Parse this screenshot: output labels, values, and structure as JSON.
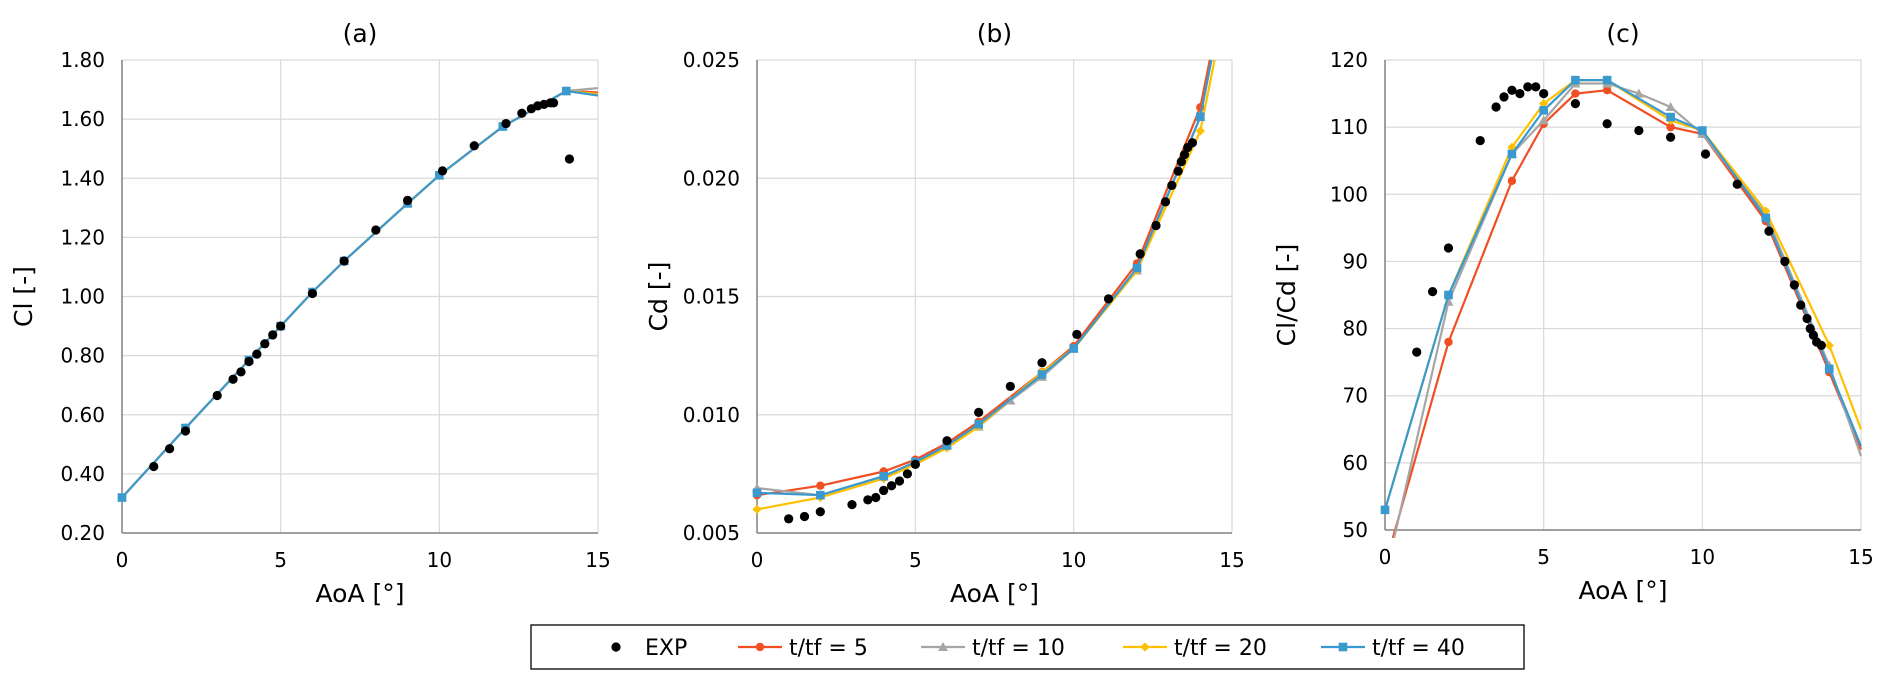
{
  "colors": {
    "exp": "#000000",
    "t5": "#F04E23",
    "t10": "#A6A6A6",
    "t20": "#FFC000",
    "t40": "#3A9AD0",
    "grid": "#D9D9D9",
    "axis": "#808080"
  },
  "legend": {
    "items": [
      {
        "key": "exp",
        "label": "EXP",
        "marker": "circle"
      },
      {
        "key": "t5",
        "label": "t/tf = 5",
        "marker": "circle"
      },
      {
        "key": "t10",
        "label": "t/tf = 10",
        "marker": "triangle"
      },
      {
        "key": "t20",
        "label": "t/tf = 20",
        "marker": "diamond"
      },
      {
        "key": "t40",
        "label": "t/tf = 40",
        "marker": "square"
      }
    ]
  },
  "chart_data": [
    {
      "type": "line",
      "title": "(a)",
      "xlabel": "AoA [°]",
      "ylabel": "Cl [-]",
      "xlim": [
        0,
        15
      ],
      "ylim": [
        0.2,
        1.8
      ],
      "xticks": [
        0,
        5,
        10,
        15
      ],
      "xtick_labels": [
        "0",
        "5",
        "10",
        "15"
      ],
      "yticks": [
        0.2,
        0.4,
        0.6,
        0.8,
        1.0,
        1.2,
        1.4,
        1.6,
        1.8
      ],
      "ytick_labels": [
        "0.20",
        "0.40",
        "0.60",
        "0.80",
        "1.00",
        "1.20",
        "1.40",
        "1.60",
        "1.80"
      ],
      "grid": true,
      "series": [
        {
          "key": "t5",
          "name": "t/tf = 5",
          "x": [
            0,
            2,
            4,
            5,
            6,
            7,
            9,
            10,
            12,
            14,
            15
          ],
          "y": [
            0.32,
            0.555,
            0.785,
            0.9,
            1.015,
            1.12,
            1.315,
            1.41,
            1.575,
            1.695,
            1.69
          ]
        },
        {
          "key": "t10",
          "name": "t/tf = 10",
          "x": [
            0,
            2,
            4,
            5,
            6,
            7,
            9,
            10,
            12,
            14,
            15
          ],
          "y": [
            0.32,
            0.555,
            0.785,
            0.9,
            1.015,
            1.12,
            1.315,
            1.41,
            1.575,
            1.695,
            1.705
          ]
        },
        {
          "key": "t20",
          "name": "t/tf = 20",
          "x": [
            0,
            2,
            4,
            5,
            6,
            7,
            9,
            10,
            12,
            14,
            15
          ],
          "y": [
            0.32,
            0.555,
            0.785,
            0.9,
            1.015,
            1.12,
            1.315,
            1.41,
            1.575,
            1.695,
            1.685
          ]
        },
        {
          "key": "t40",
          "name": "t/tf = 40",
          "x": [
            0,
            2,
            4,
            5,
            6,
            7,
            9,
            10,
            12,
            14,
            15
          ],
          "y": [
            0.32,
            0.555,
            0.785,
            0.9,
            1.015,
            1.12,
            1.315,
            1.41,
            1.575,
            1.695,
            1.68
          ]
        },
        {
          "key": "exp",
          "name": "EXP",
          "x": [
            1,
            1.5,
            2,
            3,
            3.5,
            3.75,
            4,
            4.25,
            4.5,
            4.75,
            5,
            6,
            7,
            8,
            9,
            10.1,
            11.1,
            12.1,
            12.6,
            12.9,
            13.1,
            13.3,
            13.5,
            13.6,
            14.1
          ],
          "y": [
            0.425,
            0.485,
            0.545,
            0.665,
            0.72,
            0.745,
            0.78,
            0.805,
            0.84,
            0.87,
            0.9,
            1.01,
            1.12,
            1.225,
            1.325,
            1.425,
            1.51,
            1.585,
            1.62,
            1.635,
            1.645,
            1.65,
            1.655,
            1.655,
            1.465
          ]
        }
      ]
    },
    {
      "type": "line",
      "title": "(b)",
      "xlabel": "AoA [°]",
      "ylabel": "Cd [-]",
      "xlim": [
        0,
        15
      ],
      "ylim": [
        0.005,
        0.025
      ],
      "xticks": [
        0,
        5,
        10,
        15
      ],
      "xtick_labels": [
        "0",
        "5",
        "10",
        "15"
      ],
      "yticks": [
        0.005,
        0.01,
        0.015,
        0.02,
        0.025
      ],
      "ytick_labels": [
        "0.005",
        "0.010",
        "0.015",
        "0.020",
        "0.025"
      ],
      "grid": true,
      "series": [
        {
          "key": "t5",
          "name": "t/tf = 5",
          "x": [
            0,
            2,
            4,
            5,
            6,
            7,
            9,
            10,
            12,
            14,
            14.3
          ],
          "y": [
            0.0066,
            0.007,
            0.0076,
            0.0081,
            0.0088,
            0.0097,
            0.0118,
            0.0129,
            0.0164,
            0.023,
            0.025
          ]
        },
        {
          "key": "t10",
          "name": "t/tf = 10",
          "x": [
            0,
            2,
            4,
            5,
            6,
            7,
            8,
            9,
            10,
            12,
            14,
            14.35
          ],
          "y": [
            0.0069,
            0.0066,
            0.0074,
            0.008,
            0.0087,
            0.0095,
            0.0106,
            0.0116,
            0.0128,
            0.0161,
            0.0226,
            0.025
          ]
        },
        {
          "key": "t20",
          "name": "t/tf = 20",
          "x": [
            0,
            2,
            4,
            5,
            6,
            7,
            9,
            10,
            12,
            14,
            14.45
          ],
          "y": [
            0.006,
            0.0065,
            0.0073,
            0.0079,
            0.0086,
            0.0095,
            0.0118,
            0.0128,
            0.0161,
            0.022,
            0.025
          ]
        },
        {
          "key": "t40",
          "name": "t/tf = 40",
          "x": [
            0,
            2,
            4,
            5,
            6,
            7,
            9,
            10,
            12,
            14,
            14.35
          ],
          "y": [
            0.0067,
            0.0066,
            0.0074,
            0.008,
            0.0087,
            0.0096,
            0.0117,
            0.0128,
            0.0162,
            0.0226,
            0.025
          ]
        },
        {
          "key": "exp",
          "name": "EXP",
          "x": [
            1,
            1.5,
            2,
            3,
            3.5,
            3.75,
            4,
            4.25,
            4.5,
            4.75,
            5,
            6,
            7,
            8,
            9,
            10.1,
            11.1,
            12.1,
            12.6,
            12.9,
            13.1,
            13.3,
            13.4,
            13.5,
            13.6,
            13.75
          ],
          "y": [
            0.0056,
            0.0057,
            0.0059,
            0.0062,
            0.0064,
            0.0065,
            0.0068,
            0.007,
            0.0072,
            0.0075,
            0.0079,
            0.0089,
            0.0101,
            0.0112,
            0.0122,
            0.0134,
            0.0149,
            0.0168,
            0.018,
            0.019,
            0.0197,
            0.0203,
            0.0207,
            0.021,
            0.0213,
            0.0215
          ]
        }
      ]
    },
    {
      "type": "line",
      "title": "(c)",
      "xlabel": "AoA [°]",
      "ylabel": "Cl/Cd [-]",
      "xlim": [
        0,
        15
      ],
      "ylim": [
        50,
        120
      ],
      "xticks": [
        0,
        5,
        10,
        15
      ],
      "xtick_labels": [
        "0",
        "5",
        "10",
        "15"
      ],
      "yticks": [
        50,
        60,
        70,
        80,
        90,
        100,
        110,
        120
      ],
      "ytick_labels": [
        "50",
        "60",
        "70",
        "80",
        "90",
        "100",
        "110",
        "120"
      ],
      "grid": true,
      "series": [
        {
          "key": "t5",
          "name": "t/tf = 5",
          "x": [
            0.2,
            2,
            4,
            5,
            6,
            7,
            9,
            10,
            12,
            14,
            15
          ],
          "y": [
            48,
            78,
            102,
            110.5,
            115,
            115.5,
            110,
            109,
            96,
            73.5,
            62
          ]
        },
        {
          "key": "t10",
          "name": "t/tf = 10",
          "x": [
            0.2,
            2,
            4,
            5,
            6,
            7,
            8,
            9,
            10,
            12,
            14,
            15
          ],
          "y": [
            47,
            84,
            106,
            111,
            116.5,
            116.5,
            115,
            113,
            109,
            97,
            74.5,
            61
          ]
        },
        {
          "key": "t20",
          "name": "t/tf = 20",
          "x": [
            0,
            2,
            4,
            5,
            6,
            7,
            9,
            10,
            12,
            14,
            15
          ],
          "y": [
            53,
            85,
            107,
            113.5,
            117,
            117,
            111,
            109.5,
            97.5,
            77.5,
            65
          ]
        },
        {
          "key": "t40",
          "name": "t/tf = 40",
          "x": [
            0,
            2,
            4,
            5,
            6,
            7,
            9,
            10,
            12,
            14,
            15
          ],
          "y": [
            53,
            85,
            106,
            112.5,
            117,
            117,
            111.5,
            109.5,
            96.5,
            74,
            62.5
          ]
        },
        {
          "key": "exp",
          "name": "EXP",
          "x": [
            1,
            1.5,
            2,
            3,
            3.5,
            3.75,
            4,
            4.25,
            4.5,
            4.75,
            5,
            6,
            7,
            8,
            9,
            10.1,
            11.1,
            12.1,
            12.6,
            12.9,
            13.1,
            13.3,
            13.4,
            13.5,
            13.6,
            13.75
          ],
          "y": [
            76.5,
            85.5,
            92,
            108,
            113,
            114.5,
            115.5,
            115,
            116,
            116,
            115,
            113.5,
            110.5,
            109.5,
            108.5,
            106,
            101.5,
            94.5,
            90,
            86.5,
            83.5,
            81.5,
            80,
            79,
            78,
            77.5
          ]
        }
      ]
    }
  ]
}
